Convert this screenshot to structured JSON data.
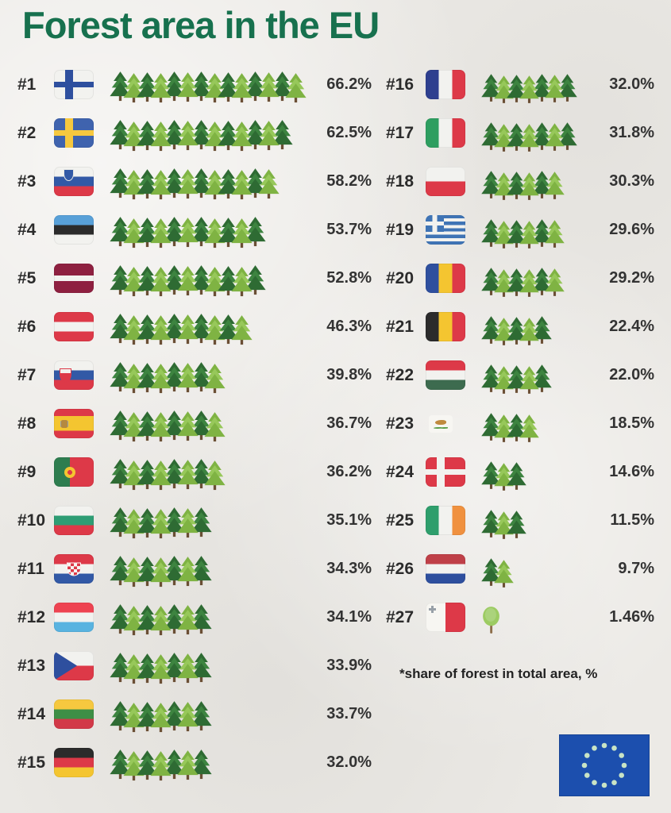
{
  "title": "Forest area in the EU",
  "footnote": "*share of forest in total area, %",
  "colors": {
    "background": "#eceae6",
    "title_green": "#17714e",
    "text_dark": "#333333",
    "tree_dark_green": "#2e6b33",
    "tree_light_green": "#7fb343",
    "eu_flag_blue": "#1c4fae",
    "eu_flag_stars": "#c9e4c5"
  },
  "eu_flag": {
    "stars": 12
  },
  "chart_data": {
    "type": "bar",
    "style": "pictogram (tree icons, 1 tree ≈ 5%)",
    "title": "Forest area in the EU",
    "ylabel": "share of forest in total area, %",
    "legend_note": "*share of forest in total area, %",
    "categories": [
      "Finland",
      "Sweden",
      "Slovenia",
      "Estonia",
      "Latvia",
      "Austria",
      "Slovakia",
      "Spain",
      "Portugal",
      "Bulgaria",
      "Croatia",
      "Luxembourg",
      "Czechia",
      "Lithuania",
      "Germany",
      "France",
      "Italy",
      "Poland",
      "Greece",
      "Romania",
      "Belgium",
      "Hungary",
      "Cyprus",
      "Denmark",
      "Ireland",
      "Netherlands",
      "Malta"
    ],
    "values": [
      66.2,
      62.5,
      58.2,
      53.7,
      52.8,
      46.3,
      39.8,
      36.7,
      36.2,
      35.1,
      34.3,
      34.1,
      33.9,
      33.7,
      32.0,
      32.0,
      31.8,
      30.3,
      29.6,
      29.2,
      22.4,
      22.0,
      18.5,
      14.6,
      11.5,
      9.7,
      1.46
    ],
    "series": [
      {
        "rank": "#1",
        "country": "Finland",
        "value": 66.2,
        "label": "66.2%",
        "trees": 14,
        "tree_icon": "evergreen-tree-icon",
        "flag": {
          "type": "nordic",
          "bg": "#f2f2ef",
          "cross": "#2e4f9e"
        }
      },
      {
        "rank": "#2",
        "country": "Sweden",
        "value": 62.5,
        "label": "62.5%",
        "trees": 13,
        "tree_icon": "evergreen-tree-icon",
        "flag": {
          "type": "nordic",
          "bg": "#3f63ae",
          "cross": "#f6c83f"
        }
      },
      {
        "rank": "#3",
        "country": "Slovenia",
        "value": 58.2,
        "label": "58.2%",
        "trees": 12,
        "tree_icon": "evergreen-tree-icon",
        "flag": {
          "type": "stripes",
          "dir": "h",
          "stripes": [
            {
              "c": "#f2f2ef"
            },
            {
              "c": "#3259a6"
            },
            {
              "c": "#dd3948"
            }
          ],
          "overlay": "slovenia-shield"
        }
      },
      {
        "rank": "#4",
        "country": "Estonia",
        "value": 53.7,
        "label": "53.7%",
        "trees": 11,
        "tree_icon": "evergreen-tree-icon",
        "flag": {
          "type": "stripes",
          "dir": "h",
          "stripes": [
            {
              "c": "#58a0d8"
            },
            {
              "c": "#2b2b2b"
            },
            {
              "c": "#f2f2ef"
            }
          ]
        }
      },
      {
        "rank": "#5",
        "country": "Latvia",
        "value": 52.8,
        "label": "52.8%",
        "trees": 11,
        "tree_icon": "evergreen-tree-icon",
        "flag": {
          "type": "stripes",
          "dir": "h",
          "stripes": [
            {
              "c": "#8e2040",
              "w": 2
            },
            {
              "c": "#f2f2ef",
              "w": 1
            },
            {
              "c": "#8e2040",
              "w": 2
            }
          ]
        }
      },
      {
        "rank": "#6",
        "country": "Austria",
        "value": 46.3,
        "label": "46.3%",
        "trees": 10,
        "tree_icon": "evergreen-tree-icon",
        "flag": {
          "type": "stripes",
          "dir": "h",
          "stripes": [
            {
              "c": "#dd3948"
            },
            {
              "c": "#f2f2ef"
            },
            {
              "c": "#dd3948"
            }
          ]
        }
      },
      {
        "rank": "#7",
        "country": "Slovakia",
        "value": 39.8,
        "label": "39.8%",
        "trees": 8,
        "tree_icon": "evergreen-tree-icon",
        "flag": {
          "type": "stripes",
          "dir": "h",
          "stripes": [
            {
              "c": "#f2f2ef"
            },
            {
              "c": "#3259a6"
            },
            {
              "c": "#dd3948"
            }
          ],
          "overlay": "slovakia-shield"
        }
      },
      {
        "rank": "#8",
        "country": "Spain",
        "value": 36.7,
        "label": "36.7%",
        "trees": 8,
        "tree_icon": "evergreen-tree-icon",
        "flag": {
          "type": "stripes",
          "dir": "h",
          "stripes": [
            {
              "c": "#dd3948",
              "w": 1
            },
            {
              "c": "#f4c530",
              "w": 2
            },
            {
              "c": "#dd3948",
              "w": 1
            }
          ],
          "overlay": "spain-emblem"
        }
      },
      {
        "rank": "#9",
        "country": "Portugal",
        "value": 36.2,
        "label": "36.2%",
        "trees": 8,
        "tree_icon": "evergreen-tree-icon",
        "flag": {
          "type": "stripes",
          "dir": "v",
          "stripes": [
            {
              "c": "#2e7d4f",
              "w": 2
            },
            {
              "c": "#dd3948",
              "w": 3
            }
          ],
          "overlay": "portugal-emblem"
        }
      },
      {
        "rank": "#10",
        "country": "Bulgaria",
        "value": 35.1,
        "label": "35.1%",
        "trees": 7,
        "tree_icon": "evergreen-tree-icon",
        "flag": {
          "type": "stripes",
          "dir": "h",
          "stripes": [
            {
              "c": "#f2f2ef"
            },
            {
              "c": "#2e9d74"
            },
            {
              "c": "#dd3948"
            }
          ]
        }
      },
      {
        "rank": "#11",
        "country": "Croatia",
        "value": 34.3,
        "label": "34.3%",
        "trees": 7,
        "tree_icon": "evergreen-tree-icon",
        "flag": {
          "type": "stripes",
          "dir": "h",
          "stripes": [
            {
              "c": "#dd3948"
            },
            {
              "c": "#f2f2ef"
            },
            {
              "c": "#3259a6"
            }
          ],
          "overlay": "croatia-shield"
        }
      },
      {
        "rank": "#12",
        "country": "Luxembourg",
        "value": 34.1,
        "label": "34.1%",
        "trees": 7,
        "tree_icon": "evergreen-tree-icon",
        "flag": {
          "type": "stripes",
          "dir": "h",
          "stripes": [
            {
              "c": "#ee4351"
            },
            {
              "c": "#f2f2ef"
            },
            {
              "c": "#59b3e0"
            }
          ]
        }
      },
      {
        "rank": "#13",
        "country": "Czechia",
        "value": 33.9,
        "label": "33.9%",
        "trees": 7,
        "tree_icon": "evergreen-tree-icon",
        "flag": {
          "type": "stripes",
          "dir": "h",
          "stripes": [
            {
              "c": "#f2f2ef"
            },
            {
              "c": "#dd3948"
            }
          ],
          "overlay": "czech-triangle"
        }
      },
      {
        "rank": "#14",
        "country": "Lithuania",
        "value": 33.7,
        "label": "33.7%",
        "trees": 7,
        "tree_icon": "evergreen-tree-icon",
        "flag": {
          "type": "stripes",
          "dir": "h",
          "stripes": [
            {
              "c": "#f6c83f"
            },
            {
              "c": "#3e8f46"
            },
            {
              "c": "#d23948"
            }
          ]
        }
      },
      {
        "rank": "#15",
        "country": "Germany",
        "value": 32.0,
        "label": "32.0%",
        "trees": 7,
        "tree_icon": "evergreen-tree-icon",
        "flag": {
          "type": "stripes",
          "dir": "h",
          "stripes": [
            {
              "c": "#2b2b2b"
            },
            {
              "c": "#dd3948"
            },
            {
              "c": "#f4c530"
            }
          ]
        }
      },
      {
        "rank": "#16",
        "country": "France",
        "value": 32.0,
        "label": "32.0%",
        "trees": 7,
        "tree_icon": "evergreen-tree-icon",
        "flag": {
          "type": "stripes",
          "dir": "v",
          "stripes": [
            {
              "c": "#2e3f8f"
            },
            {
              "c": "#f2f2ef"
            },
            {
              "c": "#dd3948"
            }
          ]
        }
      },
      {
        "rank": "#17",
        "country": "Italy",
        "value": 31.8,
        "label": "31.8%",
        "trees": 7,
        "tree_icon": "evergreen-tree-icon",
        "flag": {
          "type": "stripes",
          "dir": "v",
          "stripes": [
            {
              "c": "#2e9e60"
            },
            {
              "c": "#f2f2ef"
            },
            {
              "c": "#dd3948"
            }
          ]
        }
      },
      {
        "rank": "#18",
        "country": "Poland",
        "value": 30.3,
        "label": "30.3%",
        "trees": 6,
        "tree_icon": "evergreen-tree-icon",
        "flag": {
          "type": "stripes",
          "dir": "h",
          "stripes": [
            {
              "c": "#f2f2ef"
            },
            {
              "c": "#dd3948"
            }
          ]
        }
      },
      {
        "rank": "#19",
        "country": "Greece",
        "value": 29.6,
        "label": "29.6%",
        "trees": 6,
        "tree_icon": "evergreen-tree-icon",
        "flag": {
          "type": "stripes",
          "dir": "h",
          "stripes": [
            {
              "c": "#3f74b5"
            },
            {
              "c": "#f2f2ef"
            },
            {
              "c": "#3f74b5"
            },
            {
              "c": "#f2f2ef"
            },
            {
              "c": "#3f74b5"
            },
            {
              "c": "#f2f2ef"
            },
            {
              "c": "#3f74b5"
            },
            {
              "c": "#f2f2ef"
            },
            {
              "c": "#3f74b5"
            }
          ],
          "overlay": "greece-canton"
        }
      },
      {
        "rank": "#20",
        "country": "Romania",
        "value": 29.2,
        "label": "29.2%",
        "trees": 6,
        "tree_icon": "evergreen-tree-icon",
        "flag": {
          "type": "stripes",
          "dir": "v",
          "stripes": [
            {
              "c": "#2e4f9e"
            },
            {
              "c": "#f4c530"
            },
            {
              "c": "#dd3948"
            }
          ]
        }
      },
      {
        "rank": "#21",
        "country": "Belgium",
        "value": 22.4,
        "label": "22.4%",
        "trees": 5,
        "tree_icon": "evergreen-tree-icon",
        "flag": {
          "type": "stripes",
          "dir": "v",
          "stripes": [
            {
              "c": "#2b2b2b"
            },
            {
              "c": "#f4c530"
            },
            {
              "c": "#dd3948"
            }
          ]
        }
      },
      {
        "rank": "#22",
        "country": "Hungary",
        "value": 22.0,
        "label": "22.0%",
        "trees": 5,
        "tree_icon": "evergreen-tree-icon",
        "flag": {
          "type": "stripes",
          "dir": "h",
          "stripes": [
            {
              "c": "#dd3948"
            },
            {
              "c": "#f2f2ef"
            },
            {
              "c": "#3d6b4f"
            }
          ]
        }
      },
      {
        "rank": "#23",
        "country": "Cyprus",
        "value": 18.5,
        "label": "18.5%",
        "trees": 4,
        "tree_icon": "evergreen-tree-icon",
        "flag": {
          "type": "stripes",
          "dir": "h",
          "stripes": [
            {
              "c": "#f7f6f2"
            }
          ],
          "overlay": "cyprus-island",
          "small": true
        }
      },
      {
        "rank": "#24",
        "country": "Denmark",
        "value": 14.6,
        "label": "14.6%",
        "trees": 3,
        "tree_icon": "evergreen-tree-icon",
        "flag": {
          "type": "nordic",
          "bg": "#dd3948",
          "cross": "#f2f2ef"
        }
      },
      {
        "rank": "#25",
        "country": "Ireland",
        "value": 11.5,
        "label": "11.5%",
        "trees": 3,
        "tree_icon": "evergreen-tree-icon",
        "flag": {
          "type": "stripes",
          "dir": "v",
          "stripes": [
            {
              "c": "#2e9e6c"
            },
            {
              "c": "#f2f2ef"
            },
            {
              "c": "#f0913f"
            }
          ]
        }
      },
      {
        "rank": "#26",
        "country": "Netherlands",
        "value": 9.7,
        "label": "9.7%",
        "trees": 2,
        "tree_icon": "evergreen-tree-icon",
        "flag": {
          "type": "stripes",
          "dir": "h",
          "stripes": [
            {
              "c": "#bf4048"
            },
            {
              "c": "#f2f2ef"
            },
            {
              "c": "#2e4f9e"
            }
          ]
        }
      },
      {
        "rank": "#27",
        "country": "Malta",
        "value": 1.46,
        "label": "1.46%",
        "trees": 1,
        "tree_icon": "deciduous-tree-icon",
        "flag": {
          "type": "stripes",
          "dir": "v",
          "stripes": [
            {
              "c": "#f7f6f2"
            },
            {
              "c": "#dd3948"
            }
          ],
          "overlay": "malta-cross"
        }
      }
    ]
  }
}
